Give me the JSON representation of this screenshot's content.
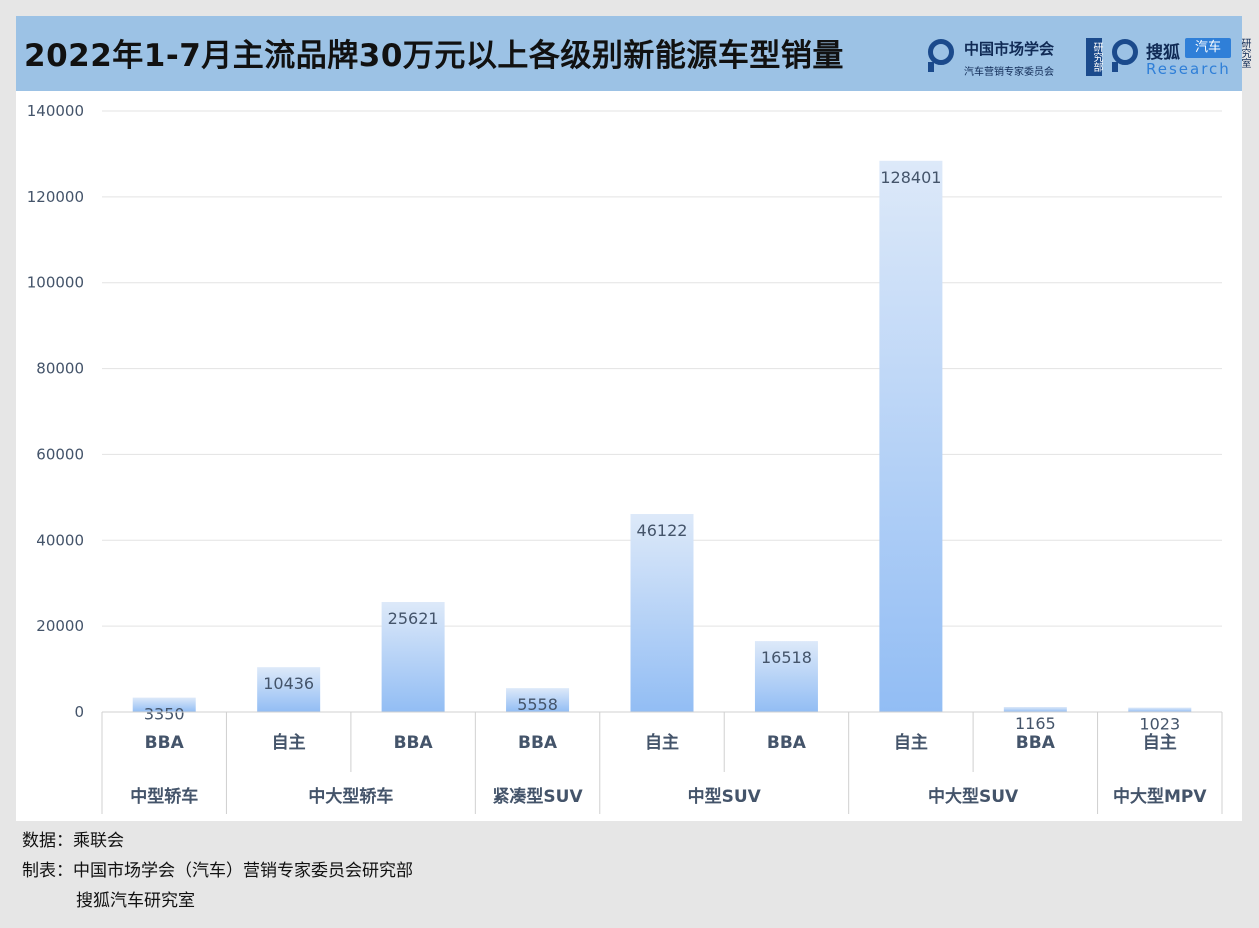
{
  "header": {
    "title": "2022年1-7月主流品牌30万元以上各级别新能源车型销量",
    "logo1_name": "中国市场学会",
    "logo1_sub": "汽车营销专家委员会",
    "logo1_tag": "研究部",
    "logo2_name": "搜狐",
    "logo2_tag": "汽车",
    "logo2_sub": "Research",
    "logo2_tag2": "研究室"
  },
  "footer": {
    "source": "数据：乘联会",
    "maker1": "制表：中国市场学会（汽车）营销专家委员会研究部",
    "maker2": "搜狐汽车研究室"
  },
  "colors": {
    "title_bg": "#9cc2e5",
    "bar_top": "#dde9f9",
    "bar_bottom": "#92bdf4",
    "label": "#44546a"
  },
  "chart_data": {
    "type": "bar",
    "title": "2022年1-7月主流品牌30万元以上各级别新能源车型销量",
    "ylim": [
      0,
      140000
    ],
    "yticks": [
      0,
      20000,
      40000,
      60000,
      80000,
      100000,
      120000,
      140000
    ],
    "grid": true,
    "categories": [
      "BBA",
      "自主",
      "BBA",
      "BBA",
      "自主",
      "BBA",
      "自主",
      "BBA",
      "自主"
    ],
    "groups": [
      {
        "label": "中型轿车",
        "count": 1
      },
      {
        "label": "中大型轿车",
        "count": 2
      },
      {
        "label": "紧凑型SUV",
        "count": 1
      },
      {
        "label": "中型SUV",
        "count": 2
      },
      {
        "label": "中大型SUV",
        "count": 2
      },
      {
        "label": "中大型MPV",
        "count": 1
      }
    ],
    "values": [
      3350,
      10436,
      25621,
      5558,
      46122,
      16518,
      128401,
      1165,
      1023
    ]
  }
}
